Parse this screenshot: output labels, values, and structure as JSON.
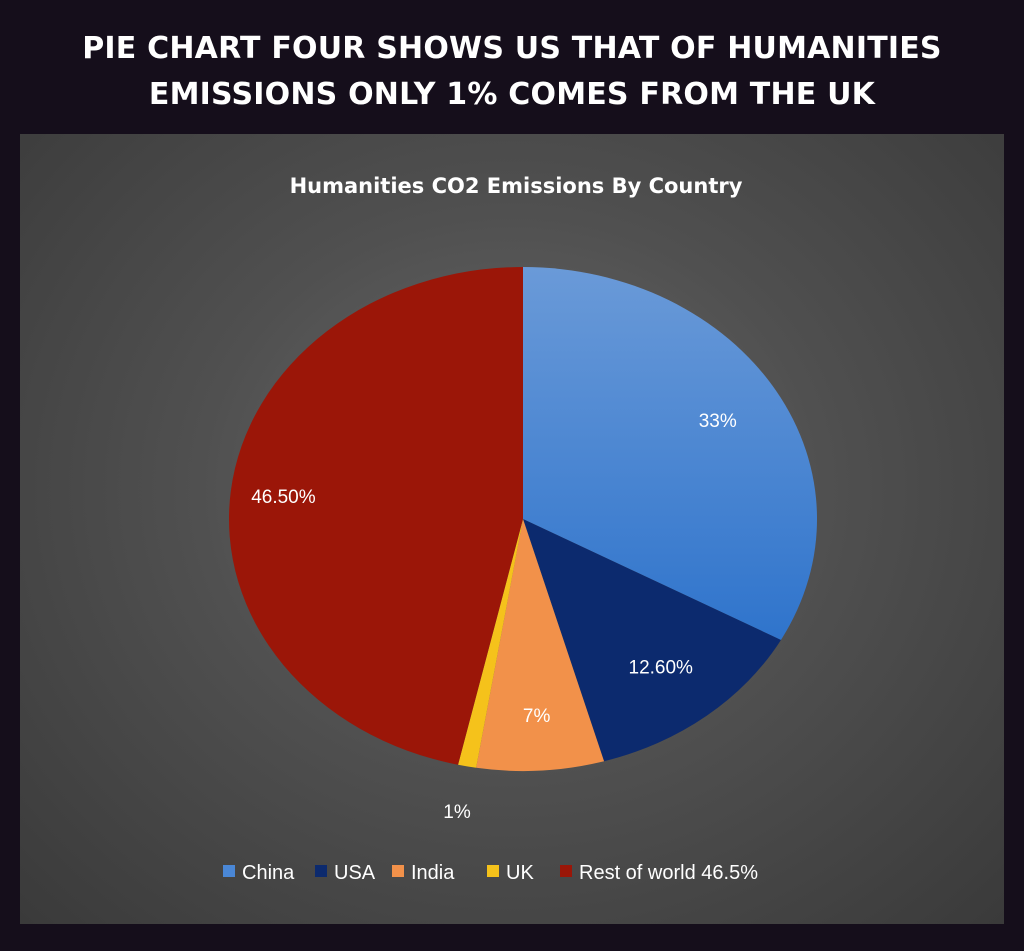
{
  "headline": {
    "line1": "PIE CHART FOUR SHOWS US THAT OF HUMANITIES",
    "line2": "EMISSIONS ONLY 1% COMES FROM THE UK"
  },
  "chart_data": {
    "type": "pie",
    "title": "Humanities CO2 Emissions By Country",
    "legend_position": "bottom",
    "slices": [
      {
        "name": "China",
        "value": 33,
        "label": "33%",
        "color": "#4a87d6"
      },
      {
        "name": "USA",
        "value": 12.6,
        "label": "12.60%",
        "color": "#0c2a6e"
      },
      {
        "name": "India",
        "value": 7,
        "label": "7%",
        "color": "#f2914a"
      },
      {
        "name": "UK",
        "value": 1,
        "label": "1%",
        "color": "#f5c21b"
      },
      {
        "name": "Rest of world 46.5%",
        "value": 46.5,
        "label": "46.50%",
        "color": "#9b1608"
      }
    ]
  }
}
